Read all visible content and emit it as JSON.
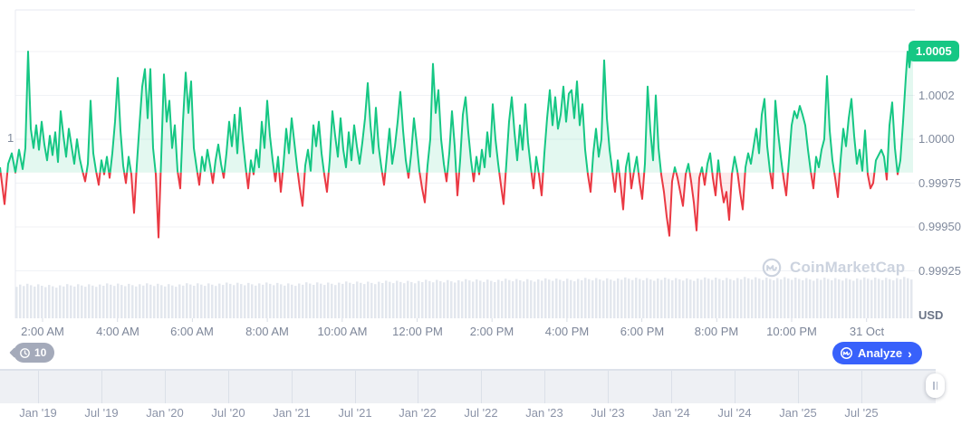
{
  "colors": {
    "up_green": "#16c784",
    "down_red": "#ea3943",
    "up_fill": "rgba(22,199,132,0.12)",
    "down_fill": "rgba(234,57,67,0.10)",
    "accent_blue": "#3861fb",
    "badge_green": "#16c784",
    "history_badge_gray": "#a4aaba",
    "watermark_gray": "#ccd3df",
    "volume_bar": "#e3e7ee",
    "gridline": "#f0f2f6",
    "plot_border": "#e7eaf0"
  },
  "price_chart": {
    "left_axis_label": "1",
    "right_axis": {
      "tick_labels": [
        "1.0002",
        "1.0000",
        "0.99975",
        "0.99950",
        "0.99925"
      ],
      "currency": "USD"
    },
    "current_price_badge": "1.0005",
    "time_labels": [
      "2:00 AM",
      "4:00 AM",
      "6:00 AM",
      "8:00 AM",
      "10:00 AM",
      "12:00 PM",
      "2:00 PM",
      "4:00 PM",
      "6:00 PM",
      "8:00 PM",
      "10:00 PM",
      "31 Oct"
    ],
    "watermark_text": "CoinMarketCap"
  },
  "history_badge": {
    "count": "10"
  },
  "analyze_button": {
    "label": "Analyze",
    "chevron": "›"
  },
  "range_slider": {
    "date_labels": [
      "Jan '19",
      "Jul '19",
      "Jan '20",
      "Jul '20",
      "Jan '21",
      "Jul '21",
      "Jan '22",
      "Jul '22",
      "Jan '23",
      "Jul '23",
      "Jan '24",
      "Jul '24",
      "Jan '25",
      "Jul '25"
    ]
  },
  "chart_data": {
    "type": "line",
    "ylabel": "USD",
    "y_ticks": [
      1.0005,
      1.00025,
      1.0,
      0.99975,
      0.9995,
      0.99925
    ],
    "x_tick_labels": [
      "2:00 AM",
      "4:00 AM",
      "6:00 AM",
      "8:00 AM",
      "10:00 AM",
      "12:00 PM",
      "2:00 PM",
      "4:00 PM",
      "6:00 PM",
      "8:00 PM",
      "10:00 PM",
      "31 Oct"
    ],
    "ylim": [
      0.99908,
      1.00074
    ],
    "baseline_price": 0.99981,
    "baseline_p": -19,
    "last_price": 1.0005,
    "series_units": "flat pairs [x,p]: x = horizontal plot pixel 0-1008 spanning ~24h; p = (price-1)*100000",
    "series_xp": [
      0,
      -16,
      5,
      -37,
      9,
      -14,
      13,
      -8,
      17,
      -19,
      21,
      -6,
      25,
      -17,
      28,
      -5,
      31,
      50,
      34,
      6,
      37,
      -5,
      40,
      8,
      43,
      -6,
      46,
      10,
      49,
      -3,
      52,
      -12,
      55,
      2,
      58,
      -9,
      61,
      4,
      64,
      -13,
      67,
      16,
      70,
      2,
      73,
      -10,
      76,
      6,
      79,
      -4,
      82,
      -14,
      85,
      0,
      88,
      -11,
      91,
      -18,
      94,
      -24,
      97,
      -14,
      100,
      22,
      103,
      -8,
      106,
      -18,
      109,
      -26,
      112,
      -12,
      115,
      -20,
      118,
      -10,
      121,
      -22,
      124,
      -8,
      127,
      10,
      130,
      35,
      133,
      5,
      136,
      -15,
      139,
      -25,
      142,
      -10,
      145,
      -20,
      148,
      -42,
      151,
      -15,
      154,
      8,
      157,
      30,
      160,
      40,
      163,
      12,
      166,
      40,
      169,
      -5,
      172,
      -20,
      175,
      -56,
      178,
      -10,
      181,
      37,
      184,
      10,
      187,
      22,
      190,
      -5,
      193,
      8,
      196,
      -18,
      199,
      -28,
      202,
      10,
      205,
      38,
      208,
      15,
      211,
      33,
      214,
      -5,
      217,
      -16,
      220,
      -26,
      223,
      -10,
      226,
      -18,
      229,
      -6,
      232,
      -15,
      235,
      -25,
      238,
      -12,
      241,
      -3,
      244,
      -14,
      247,
      -22,
      250,
      -8,
      253,
      10,
      256,
      -4,
      259,
      14,
      262,
      -8,
      265,
      18,
      268,
      0,
      271,
      -15,
      274,
      -28,
      277,
      -12,
      280,
      -20,
      283,
      -6,
      286,
      -16,
      289,
      10,
      292,
      -5,
      295,
      22,
      298,
      2,
      301,
      -12,
      304,
      -24,
      307,
      -10,
      310,
      -30,
      313,
      -14,
      316,
      6,
      319,
      -8,
      322,
      12,
      325,
      -2,
      328,
      -16,
      331,
      -28,
      334,
      -38,
      337,
      -15,
      340,
      -6,
      343,
      -18,
      346,
      8,
      349,
      -4,
      352,
      10,
      355,
      -8,
      358,
      -20,
      361,
      -30,
      364,
      -12,
      367,
      16,
      370,
      2,
      373,
      -10,
      376,
      12,
      379,
      -6,
      382,
      -16,
      385,
      4,
      388,
      -12,
      391,
      8,
      394,
      -4,
      397,
      -14,
      400,
      -2,
      403,
      12,
      406,
      32,
      409,
      8,
      412,
      -8,
      415,
      18,
      418,
      -4,
      421,
      -16,
      424,
      -26,
      427,
      -10,
      430,
      6,
      433,
      -14,
      436,
      -4,
      439,
      10,
      442,
      27,
      445,
      5,
      448,
      -12,
      451,
      -22,
      454,
      -8,
      457,
      12,
      460,
      -2,
      463,
      -18,
      466,
      -28,
      469,
      -36,
      472,
      -15,
      475,
      0,
      478,
      43,
      481,
      15,
      484,
      28,
      487,
      0,
      490,
      -14,
      493,
      -24,
      496,
      -8,
      499,
      16,
      502,
      -4,
      505,
      -32,
      508,
      -12,
      511,
      14,
      514,
      24,
      517,
      4,
      520,
      -12,
      523,
      -24,
      526,
      -10,
      529,
      -20,
      532,
      -6,
      535,
      -16,
      538,
      4,
      541,
      -10,
      544,
      20,
      547,
      0,
      550,
      -14,
      553,
      -26,
      556,
      -37,
      559,
      -14,
      562,
      10,
      565,
      24,
      568,
      4,
      571,
      -12,
      574,
      8,
      577,
      -6,
      580,
      20,
      583,
      -2,
      586,
      -16,
      589,
      -28,
      592,
      -10,
      595,
      -20,
      598,
      -32,
      601,
      -8,
      604,
      12,
      607,
      28,
      610,
      8,
      613,
      24,
      616,
      6,
      619,
      14,
      622,
      30,
      625,
      10,
      628,
      26,
      631,
      28,
      634,
      12,
      637,
      33,
      640,
      8,
      643,
      20,
      646,
      -6,
      649,
      -20,
      652,
      -30,
      655,
      -8,
      658,
      6,
      661,
      -10,
      664,
      0,
      667,
      45,
      670,
      12,
      673,
      -6,
      676,
      -18,
      679,
      -30,
      682,
      -12,
      685,
      -25,
      688,
      -40,
      691,
      -16,
      694,
      -8,
      697,
      -28,
      700,
      -18,
      703,
      -10,
      706,
      -24,
      709,
      -34,
      712,
      -14,
      715,
      30,
      718,
      5,
      721,
      -12,
      724,
      25,
      727,
      -5,
      730,
      -20,
      733,
      -30,
      736,
      -44,
      739,
      -55,
      742,
      -24,
      745,
      -16,
      748,
      -22,
      751,
      -30,
      754,
      -38,
      757,
      -20,
      760,
      -14,
      763,
      -24,
      766,
      -36,
      769,
      -52,
      772,
      -22,
      775,
      -16,
      778,
      -26,
      781,
      -14,
      784,
      -8,
      787,
      -22,
      790,
      -32,
      793,
      -12,
      796,
      -26,
      799,
      -36,
      802,
      -30,
      805,
      -46,
      808,
      -20,
      811,
      -10,
      814,
      -18,
      817,
      -30,
      820,
      -40,
      823,
      -16,
      826,
      -8,
      829,
      -14,
      832,
      -4,
      835,
      6,
      838,
      -8,
      841,
      14,
      844,
      23,
      847,
      -4,
      850,
      -18,
      853,
      -28,
      856,
      22,
      859,
      4,
      862,
      -10,
      865,
      -22,
      868,
      -32,
      871,
      -12,
      874,
      8,
      877,
      16,
      880,
      12,
      883,
      19,
      886,
      14,
      889,
      8,
      892,
      -6,
      895,
      -18,
      898,
      -28,
      901,
      -10,
      904,
      -16,
      907,
      -6,
      910,
      0,
      913,
      36,
      916,
      5,
      919,
      -12,
      922,
      -22,
      925,
      -33,
      928,
      -12,
      931,
      6,
      934,
      -4,
      937,
      12,
      940,
      23,
      943,
      2,
      946,
      -14,
      949,
      -6,
      952,
      -18,
      955,
      5,
      958,
      -20,
      961,
      -28,
      964,
      -25,
      967,
      -12,
      970,
      -9,
      973,
      -6,
      976,
      -10,
      979,
      -23,
      982,
      8,
      985,
      21,
      988,
      -5,
      991,
      -20,
      994,
      -12,
      997,
      10,
      1000,
      35,
      1002,
      50,
      1004,
      41,
      1006,
      50,
      1008,
      51
    ],
    "volume_profile_norm": [
      0.8,
      0.78,
      0.8,
      0.81,
      0.8,
      0.82,
      0.83,
      0.82,
      0.84,
      0.86,
      0.88,
      0.9,
      0.91,
      0.92,
      0.93,
      0.94,
      0.95,
      0.94,
      0.95,
      0.96,
      0.95,
      0.94,
      0.95,
      0.96
    ]
  }
}
